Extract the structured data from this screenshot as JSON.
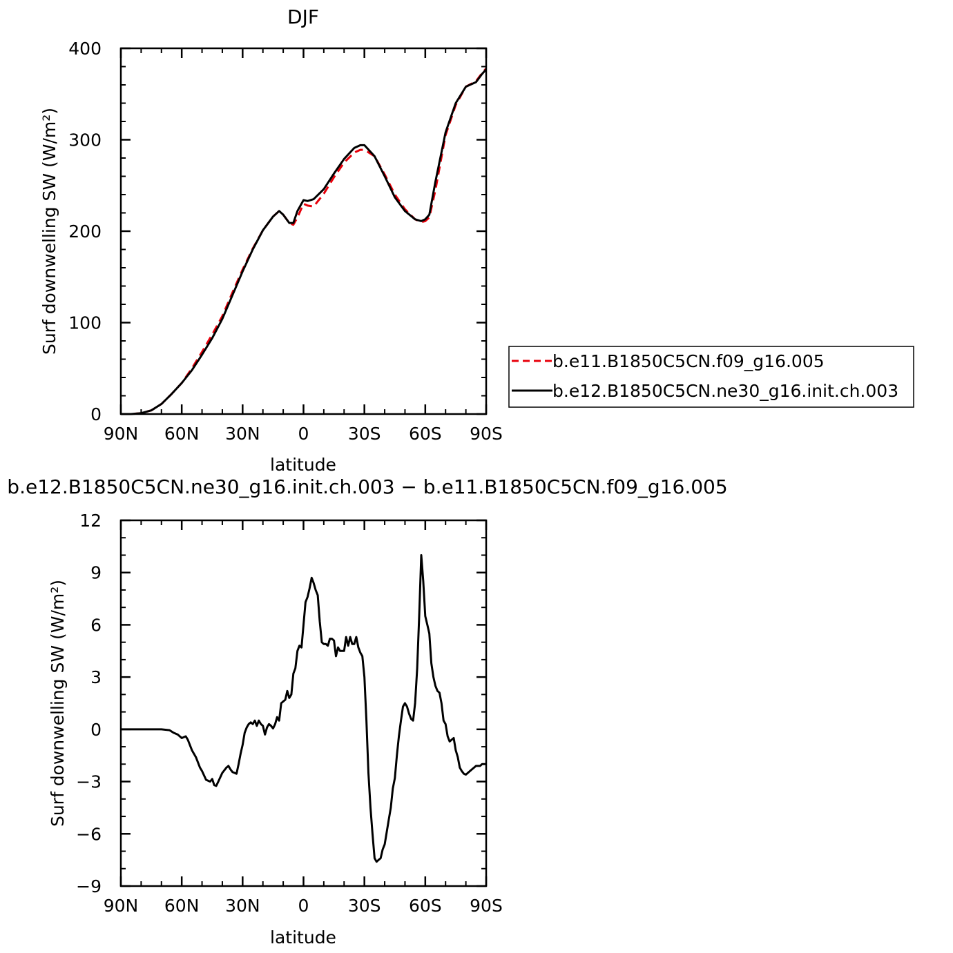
{
  "chart_data": [
    {
      "type": "line",
      "title": "DJF",
      "xlabel": "latitude",
      "ylabel": "Surf downwelling SW (W/m²)",
      "xlim": [
        90,
        -90
      ],
      "ylim": [
        0,
        400
      ],
      "xticks": [
        90,
        60,
        30,
        0,
        -30,
        -60,
        -90
      ],
      "xtick_labels": [
        "90N",
        "60N",
        "30N",
        "0",
        "30S",
        "60S",
        "90S"
      ],
      "yticks": [
        0,
        100,
        200,
        300,
        400
      ],
      "ytick_labels": [
        "0",
        "100",
        "200",
        "300",
        "400"
      ],
      "legend_position": "right",
      "grid": false,
      "series": [
        {
          "name": "b.e11.B1850C5CN.f09_g16.005",
          "color": "#e8000b",
          "dash": "dashed",
          "x": [
            90,
            85,
            80,
            75,
            70,
            65,
            60,
            55,
            50,
            45,
            40,
            35,
            30,
            25,
            20,
            15,
            12,
            10,
            7,
            5,
            3,
            0,
            -2,
            -5,
            -10,
            -15,
            -20,
            -25,
            -28,
            -30,
            -35,
            -40,
            -45,
            -50,
            -55,
            -58,
            -60,
            -62,
            -65,
            -70,
            -75,
            -80,
            -85,
            -88,
            -90
          ],
          "y": [
            0,
            0,
            1,
            4,
            11,
            22,
            34,
            50,
            68,
            87,
            107,
            133,
            158,
            181,
            201,
            216,
            222,
            218,
            209,
            207,
            215,
            230,
            228,
            227,
            241,
            259,
            275,
            286,
            289,
            289,
            282,
            262,
            240,
            224,
            213,
            210,
            211,
            215,
            245,
            305,
            338,
            358,
            364,
            373,
            378
          ]
        },
        {
          "name": "b.e12.B1850C5CN.ne30_g16.init.ch.003",
          "color": "#000000",
          "dash": "solid",
          "x": [
            90,
            85,
            80,
            75,
            70,
            65,
            60,
            55,
            50,
            45,
            40,
            35,
            30,
            25,
            20,
            15,
            12,
            10,
            7,
            5,
            3,
            0,
            -2,
            -5,
            -10,
            -15,
            -20,
            -25,
            -28,
            -30,
            -35,
            -40,
            -45,
            -50,
            -55,
            -58,
            -60,
            -62,
            -65,
            -70,
            -75,
            -80,
            -85,
            -88,
            -90
          ],
          "y": [
            0,
            0,
            1,
            4,
            11,
            22,
            34,
            48,
            65,
            83,
            104,
            130,
            156,
            180,
            201,
            216,
            222,
            218,
            209,
            209,
            222,
            234,
            233,
            235,
            246,
            263,
            279,
            291,
            294,
            294,
            282,
            260,
            237,
            222,
            213,
            211,
            213,
            218,
            254,
            308,
            340,
            358,
            363,
            372,
            377
          ]
        }
      ]
    },
    {
      "type": "line",
      "title": "b.e12.B1850C5CN.ne30_g16.init.ch.003 − b.e11.B1850C5CN.f09_g16.005",
      "xlabel": "latitude",
      "ylabel": "Surf downwelling SW (W/m²)",
      "xlim": [
        90,
        -90
      ],
      "ylim": [
        -9,
        12
      ],
      "xticks": [
        90,
        60,
        30,
        0,
        -30,
        -60,
        -90
      ],
      "xtick_labels": [
        "90N",
        "60N",
        "30N",
        "0",
        "30S",
        "60S",
        "90S"
      ],
      "yticks": [
        -9,
        -6,
        -3,
        0,
        3,
        6,
        9,
        12
      ],
      "ytick_labels": [
        "−9",
        "−6",
        "−3",
        "0",
        "3",
        "6",
        "9",
        "12"
      ],
      "grid": false,
      "series": [
        {
          "color": "#000000",
          "dash": "solid",
          "x": [
            90,
            85,
            80,
            75,
            70,
            66,
            64,
            62,
            60,
            58,
            57,
            55,
            53,
            51,
            50,
            48,
            46,
            45,
            44,
            43,
            42,
            40,
            38,
            37,
            36,
            35,
            33,
            32,
            31,
            30,
            29,
            28,
            27,
            26,
            25,
            24,
            23,
            22,
            21,
            20,
            19,
            18,
            17,
            16,
            15,
            14,
            13,
            12,
            11,
            10,
            9,
            8,
            7,
            6,
            5,
            4,
            3,
            2,
            1,
            0,
            -1,
            -2,
            -3,
            -4,
            -5,
            -6,
            -7,
            -8,
            -9,
            -10,
            -11,
            -12,
            -13,
            -14,
            -15,
            -16,
            -17,
            -18,
            -19,
            -20,
            -21,
            -22,
            -23,
            -24,
            -25,
            -26,
            -27,
            -28,
            -29,
            -30,
            -31,
            -32,
            -33,
            -34,
            -35,
            -36,
            -37,
            -38,
            -39,
            -40,
            -41,
            -42,
            -43,
            -44,
            -45,
            -46,
            -47,
            -48,
            -49,
            -50,
            -51,
            -52,
            -53,
            -54,
            -55,
            -56,
            -57,
            -58,
            -59,
            -60,
            -61,
            -62,
            -63,
            -64,
            -65,
            -66,
            -67,
            -68,
            -69,
            -70,
            -71,
            -72,
            -73,
            -74,
            -75,
            -76,
            -77,
            -78,
            -79,
            -80,
            -81,
            -82,
            -83,
            -84,
            -85,
            -86,
            -87,
            -88,
            -89,
            -90
          ],
          "y": [
            0,
            0,
            0,
            0,
            0,
            -0.05,
            -0.2,
            -0.3,
            -0.5,
            -0.4,
            -0.6,
            -1.2,
            -1.6,
            -2.2,
            -2.4,
            -2.9,
            -3.0,
            -2.85,
            -3.2,
            -3.25,
            -3.0,
            -2.5,
            -2.2,
            -2.1,
            -2.3,
            -2.45,
            -2.55,
            -2.0,
            -1.4,
            -0.9,
            -0.2,
            0.1,
            0.3,
            0.4,
            0.3,
            0.5,
            0.2,
            0.5,
            0.3,
            0.2,
            -0.3,
            0.1,
            0.3,
            0.2,
            0.05,
            0.3,
            0.7,
            0.5,
            1.5,
            1.6,
            1.7,
            2.2,
            1.8,
            2.0,
            3.2,
            3.5,
            4.5,
            4.8,
            4.7,
            6.0,
            7.3,
            7.6,
            8.1,
            8.7,
            8.4,
            8.0,
            7.7,
            6.2,
            5.0,
            4.9,
            4.9,
            4.8,
            5.2,
            5.2,
            5.1,
            4.2,
            4.7,
            4.5,
            4.5,
            4.5,
            5.3,
            4.8,
            5.3,
            4.9,
            4.9,
            5.3,
            4.7,
            4.4,
            4.2,
            3.0,
            0.5,
            -2.5,
            -4.5,
            -6.0,
            -7.4,
            -7.6,
            -7.5,
            -7.4,
            -6.9,
            -6.6,
            -5.9,
            -5.2,
            -4.5,
            -3.4,
            -2.8,
            -1.5,
            -0.4,
            0.5,
            1.3,
            1.5,
            1.3,
            0.9,
            0.6,
            0.5,
            1.5,
            3.5,
            6.5,
            10.0,
            8.5,
            6.5,
            6.0,
            5.5,
            3.8,
            3.0,
            2.5,
            2.2,
            2.1,
            1.5,
            0.5,
            0.3,
            -0.4,
            -0.7,
            -0.6,
            -0.5,
            -1.2,
            -1.6,
            -2.2,
            -2.4,
            -2.55,
            -2.6,
            -2.5,
            -2.4,
            -2.3,
            -2.2,
            -2.1,
            -2.1,
            -2.1,
            -2.0,
            -2.0,
            -2.0
          ]
        }
      ]
    }
  ]
}
